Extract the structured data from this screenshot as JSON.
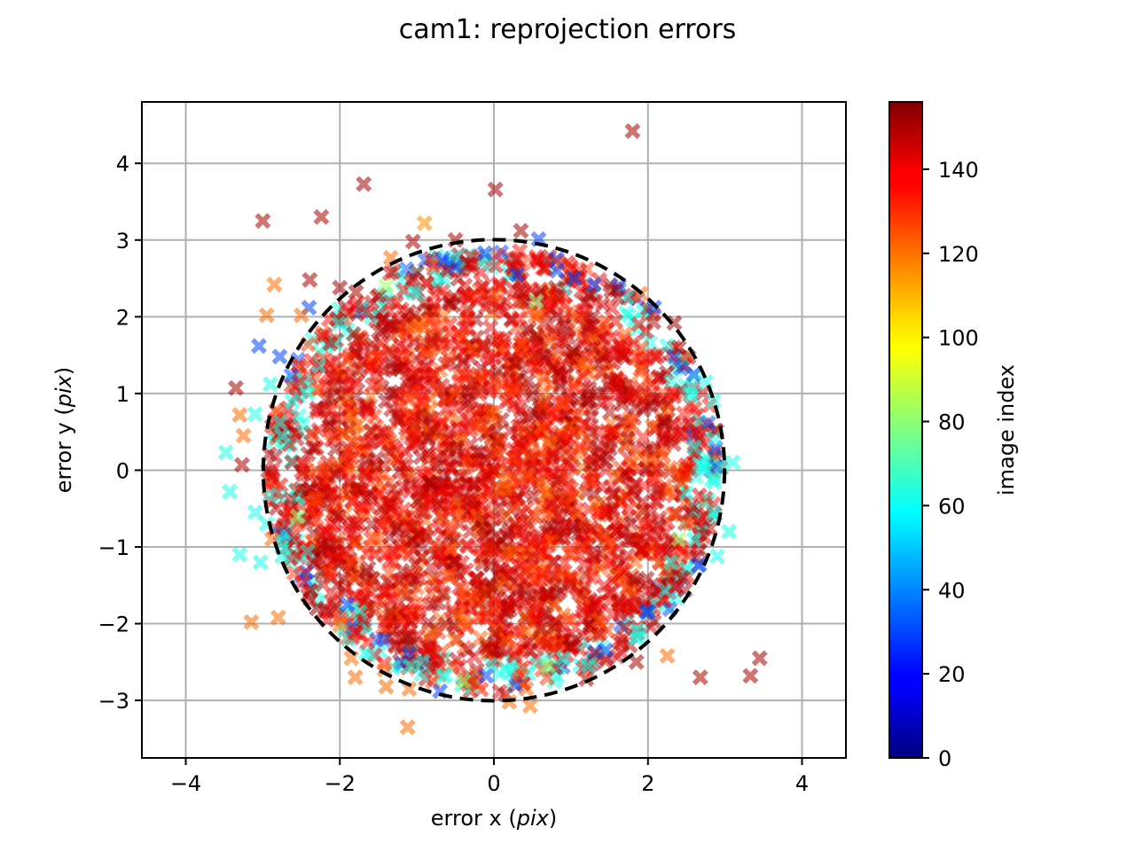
{
  "chart_data": {
    "type": "scatter",
    "title": "cam1: reprojection errors",
    "xlabel": {
      "prefix": "error x (",
      "unit": "pix",
      "suffix": ")"
    },
    "ylabel": {
      "prefix": "error y (",
      "unit": "pix",
      "suffix": ")"
    },
    "xlim": [
      -4.57,
      4.57
    ],
    "ylim": [
      -3.75,
      4.8
    ],
    "xticks": [
      -4,
      -2,
      0,
      2,
      4
    ],
    "yticks": [
      -3,
      -2,
      -1,
      0,
      1,
      2,
      3,
      4
    ],
    "xtick_labels": [
      "−4",
      "−2",
      "0",
      "2",
      "4"
    ],
    "ytick_labels": [
      "−3",
      "−2",
      "−1",
      "0",
      "1",
      "2",
      "3",
      "4"
    ],
    "grid": true,
    "marker": "X",
    "colormap": "jet",
    "circle": {
      "center": [
        0,
        0
      ],
      "radius": 3,
      "style": "dashed",
      "color": "#000000"
    },
    "colorbar": {
      "label": "image index",
      "range": [
        0,
        156
      ],
      "ticks": [
        0,
        20,
        40,
        60,
        80,
        100,
        120,
        140
      ],
      "tick_labels": [
        "0",
        "20",
        "40",
        "60",
        "80",
        "100",
        "120",
        "140"
      ]
    },
    "points": [
      {
        "x": 1.8,
        "y": 4.42,
        "c": 150
      },
      {
        "x": -1.69,
        "y": 3.73,
        "c": 150
      },
      {
        "x": 0.02,
        "y": 3.66,
        "c": 150
      },
      {
        "x": -3.0,
        "y": 3.25,
        "c": 150
      },
      {
        "x": -2.24,
        "y": 3.3,
        "c": 150
      },
      {
        "x": -0.9,
        "y": 3.22,
        "c": 115
      },
      {
        "x": 0.35,
        "y": 3.12,
        "c": 150
      },
      {
        "x": 0.58,
        "y": 3.01,
        "c": 30
      },
      {
        "x": -1.05,
        "y": 2.98,
        "c": 150
      },
      {
        "x": -0.5,
        "y": 3.0,
        "c": 150
      },
      {
        "x": -0.12,
        "y": 2.83,
        "c": 30
      },
      {
        "x": -1.34,
        "y": 2.77,
        "c": 120
      },
      {
        "x": -2.85,
        "y": 2.42,
        "c": 120
      },
      {
        "x": -2.39,
        "y": 2.48,
        "c": 150
      },
      {
        "x": -2.0,
        "y": 2.38,
        "c": 150
      },
      {
        "x": -1.79,
        "y": 2.32,
        "c": 150
      },
      {
        "x": -1.4,
        "y": 2.4,
        "c": 82
      },
      {
        "x": -2.95,
        "y": 2.02,
        "c": 120
      },
      {
        "x": -2.4,
        "y": 2.12,
        "c": 30
      },
      {
        "x": -2.5,
        "y": 2.02,
        "c": 120
      },
      {
        "x": 1.58,
        "y": 2.35,
        "c": 150
      },
      {
        "x": 1.9,
        "y": 2.3,
        "c": 120
      },
      {
        "x": 2.08,
        "y": 2.12,
        "c": 30
      },
      {
        "x": 2.34,
        "y": 1.92,
        "c": 150
      },
      {
        "x": 2.4,
        "y": 1.6,
        "c": 150
      },
      {
        "x": -3.05,
        "y": 1.62,
        "c": 30
      },
      {
        "x": -2.78,
        "y": 1.48,
        "c": 30
      },
      {
        "x": -2.9,
        "y": 1.12,
        "c": 62
      },
      {
        "x": -3.35,
        "y": 1.07,
        "c": 150
      },
      {
        "x": -3.3,
        "y": 0.72,
        "c": 120
      },
      {
        "x": -3.1,
        "y": 0.73,
        "c": 62
      },
      {
        "x": -2.78,
        "y": 0.62,
        "c": 62
      },
      {
        "x": -2.75,
        "y": 0.45,
        "c": 62
      },
      {
        "x": -3.25,
        "y": 0.45,
        "c": 120
      },
      {
        "x": -3.48,
        "y": 0.23,
        "c": 62
      },
      {
        "x": -3.27,
        "y": 0.07,
        "c": 150
      },
      {
        "x": -3.43,
        "y": -0.28,
        "c": 62
      },
      {
        "x": -3.1,
        "y": -0.55,
        "c": 62
      },
      {
        "x": -2.95,
        "y": -0.7,
        "c": 62
      },
      {
        "x": -2.88,
        "y": -0.9,
        "c": 120
      },
      {
        "x": -3.3,
        "y": -1.1,
        "c": 62
      },
      {
        "x": -3.03,
        "y": -1.2,
        "c": 62
      },
      {
        "x": -2.75,
        "y": -1.12,
        "c": 62
      },
      {
        "x": 2.75,
        "y": 1.15,
        "c": 62
      },
      {
        "x": 2.85,
        "y": 0.9,
        "c": 62
      },
      {
        "x": 3.1,
        "y": 0.1,
        "c": 62
      },
      {
        "x": 2.95,
        "y": 0.05,
        "c": 62
      },
      {
        "x": 2.6,
        "y": 0.3,
        "c": 62
      },
      {
        "x": 2.85,
        "y": -0.55,
        "c": 62
      },
      {
        "x": 3.05,
        "y": -0.8,
        "c": 62
      },
      {
        "x": 2.6,
        "y": -0.9,
        "c": 62
      },
      {
        "x": 2.4,
        "y": -0.9,
        "c": 82
      },
      {
        "x": 2.3,
        "y": -1.2,
        "c": 62
      },
      {
        "x": 2.9,
        "y": -1.12,
        "c": 62
      },
      {
        "x": 2.45,
        "y": -1.4,
        "c": 150
      },
      {
        "x": -3.15,
        "y": -1.98,
        "c": 120
      },
      {
        "x": -2.8,
        "y": -1.92,
        "c": 120
      },
      {
        "x": -2.0,
        "y": -2.02,
        "c": 120
      },
      {
        "x": -1.9,
        "y": -1.75,
        "c": 30
      },
      {
        "x": -2.3,
        "y": -1.8,
        "c": 150
      },
      {
        "x": 1.98,
        "y": -1.85,
        "c": 30
      },
      {
        "x": 1.7,
        "y": -2.05,
        "c": 150
      },
      {
        "x": 2.25,
        "y": -2.42,
        "c": 120
      },
      {
        "x": 1.85,
        "y": -2.5,
        "c": 150
      },
      {
        "x": 1.45,
        "y": -2.35,
        "c": 30
      },
      {
        "x": 1.22,
        "y": -2.55,
        "c": 62
      },
      {
        "x": 1.2,
        "y": -2.72,
        "c": 150
      },
      {
        "x": 2.68,
        "y": -2.7,
        "c": 150
      },
      {
        "x": 3.33,
        "y": -2.68,
        "c": 150
      },
      {
        "x": 3.45,
        "y": -2.45,
        "c": 150
      },
      {
        "x": -1.85,
        "y": -2.45,
        "c": 120
      },
      {
        "x": -1.8,
        "y": -2.7,
        "c": 120
      },
      {
        "x": -1.42,
        "y": -2.6,
        "c": 120
      },
      {
        "x": -1.4,
        "y": -2.82,
        "c": 120
      },
      {
        "x": -1.1,
        "y": -2.85,
        "c": 120
      },
      {
        "x": -1.12,
        "y": -3.35,
        "c": 120
      },
      {
        "x": -0.7,
        "y": -2.88,
        "c": 30
      },
      {
        "x": -0.4,
        "y": -2.75,
        "c": 82
      },
      {
        "x": -0.1,
        "y": -2.68,
        "c": 30
      },
      {
        "x": 0.15,
        "y": -2.92,
        "c": 150
      },
      {
        "x": 0.2,
        "y": -3.02,
        "c": 120
      },
      {
        "x": 0.47,
        "y": -3.07,
        "c": 120
      },
      {
        "x": 0.42,
        "y": -2.85,
        "c": 120
      },
      {
        "x": 0.7,
        "y": -2.55,
        "c": 82
      },
      {
        "x": 0.9,
        "y": -2.45,
        "c": 62
      },
      {
        "x": -0.5,
        "y": 2.65,
        "c": 30
      },
      {
        "x": 0.3,
        "y": 2.55,
        "c": 30
      },
      {
        "x": 0.82,
        "y": 2.6,
        "c": 30
      },
      {
        "x": 0.55,
        "y": 2.2,
        "c": 82
      },
      {
        "x": 1.05,
        "y": 2.5,
        "c": 30
      },
      {
        "x": 1.3,
        "y": 2.42,
        "c": 30
      },
      {
        "x": -1.05,
        "y": 2.5,
        "c": 150
      },
      {
        "x": 2.55,
        "y": 1.0,
        "c": 62
      },
      {
        "x": -2.62,
        "y": 0.9,
        "c": 62
      },
      {
        "x": 2.5,
        "y": -0.3,
        "c": 62
      },
      {
        "x": -2.55,
        "y": -0.6,
        "c": 82
      }
    ]
  }
}
